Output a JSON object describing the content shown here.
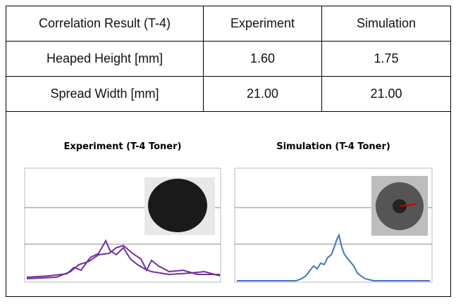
{
  "table": {
    "header": [
      "Correlation Result (T-4)",
      "Experiment",
      "Simulation"
    ],
    "rows": [
      [
        "Heaped Height [mm]",
        "1.60",
        "1.75"
      ],
      [
        "Spread Width [mm]",
        "21.00",
        "21.00"
      ]
    ]
  },
  "figures": [
    {
      "title": "Experiment (T-4 Toner)"
    },
    {
      "title": "Simulation (T-4 Toner)"
    }
  ]
}
